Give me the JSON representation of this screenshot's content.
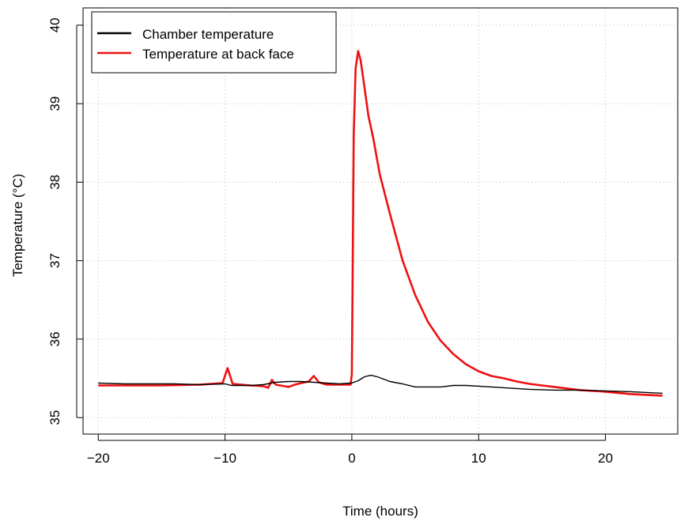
{
  "chart_data": {
    "type": "line",
    "title": "",
    "xlabel": "Time (hours)",
    "ylabel": "Temperature (°C)",
    "xlim": [
      -21.2,
      25.7
    ],
    "ylim": [
      34.79,
      40.22
    ],
    "x_ticks": [
      -20,
      -10,
      0,
      10,
      20
    ],
    "x_tick_labels": [
      "−20",
      "−10",
      "0",
      "10",
      "20"
    ],
    "y_ticks": [
      35,
      36,
      37,
      38,
      39,
      40
    ],
    "y_tick_labels": [
      "35",
      "36",
      "37",
      "38",
      "39",
      "40"
    ],
    "grid": true,
    "legend_position": "top-left",
    "series": [
      {
        "name": "Chamber temperature",
        "color": "#000000",
        "x": [
          -20,
          -18,
          -16,
          -14,
          -12,
          -10,
          -9.5,
          -8,
          -7,
          -6,
          -5,
          -4,
          -3,
          -2,
          -1,
          0,
          0.5,
          1,
          1.5,
          2,
          3,
          4,
          5,
          6,
          7,
          8,
          9,
          10,
          12,
          14,
          16,
          18,
          20,
          22,
          24.5
        ],
        "y": [
          35.44,
          35.43,
          35.43,
          35.43,
          35.42,
          35.43,
          35.41,
          35.41,
          35.42,
          35.45,
          35.46,
          35.46,
          35.45,
          35.44,
          35.43,
          35.44,
          35.47,
          35.52,
          35.54,
          35.52,
          35.46,
          35.43,
          35.39,
          35.39,
          35.39,
          35.41,
          35.41,
          35.4,
          35.38,
          35.36,
          35.35,
          35.35,
          35.34,
          35.33,
          35.31
        ]
      },
      {
        "name": "Temperature at back face",
        "color": "#ee1111",
        "x": [
          -20,
          -15,
          -12,
          -10.2,
          -9.8,
          -9.4,
          -8,
          -7,
          -6.6,
          -6.3,
          -6,
          -5,
          -4.5,
          -4,
          -3.4,
          -3,
          -2.6,
          -2,
          -1,
          -0.1,
          0,
          0.05,
          0.15,
          0.3,
          0.5,
          0.7,
          1,
          1.3,
          1.7,
          2.2,
          3,
          4,
          5,
          6,
          7,
          8,
          9,
          10,
          11,
          12,
          13,
          14,
          15,
          16,
          18,
          20,
          22,
          24.5
        ],
        "y": [
          35.41,
          35.41,
          35.42,
          35.44,
          35.63,
          35.43,
          35.41,
          35.4,
          35.38,
          35.48,
          35.42,
          35.39,
          35.42,
          35.44,
          35.46,
          35.53,
          35.45,
          35.42,
          35.42,
          35.42,
          35.55,
          36.5,
          38.6,
          39.45,
          39.67,
          39.55,
          39.2,
          38.85,
          38.55,
          38.1,
          37.6,
          37.0,
          36.56,
          36.22,
          35.98,
          35.81,
          35.68,
          35.59,
          35.53,
          35.5,
          35.46,
          35.43,
          35.41,
          35.39,
          35.35,
          35.33,
          35.3,
          35.28
        ]
      }
    ]
  }
}
